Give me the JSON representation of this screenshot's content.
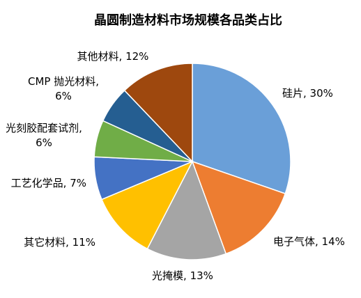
{
  "chart_data": {
    "type": "pie",
    "title": "晶圆制造材料市场规模各品类占比",
    "slices": [
      {
        "label": "硅片",
        "value": 30,
        "value_text": "30%",
        "color": "#6a9fd8"
      },
      {
        "label": "电子气体",
        "value": 14,
        "value_text": "14%",
        "color": "#ed7d31"
      },
      {
        "label": "光掩模",
        "value": 13,
        "value_text": "13%",
        "color": "#a5a5a5"
      },
      {
        "label": "其它材料",
        "value": 11,
        "value_text": "11%",
        "color": "#ffc000"
      },
      {
        "label": "工艺化学品",
        "value": 7,
        "value_text": "7%",
        "color": "#4472c4"
      },
      {
        "label": "光刻胶配套试剂",
        "value": 6,
        "value_text": "6%",
        "color": "#70ad47"
      },
      {
        "label": "CMP 抛光材料",
        "value": 6,
        "value_text": "6%",
        "color": "#255e91"
      },
      {
        "label": "其他材料",
        "value": 12,
        "value_text": "12%",
        "color": "#9e480e"
      }
    ],
    "legend": "none",
    "data_labels": "outside"
  }
}
